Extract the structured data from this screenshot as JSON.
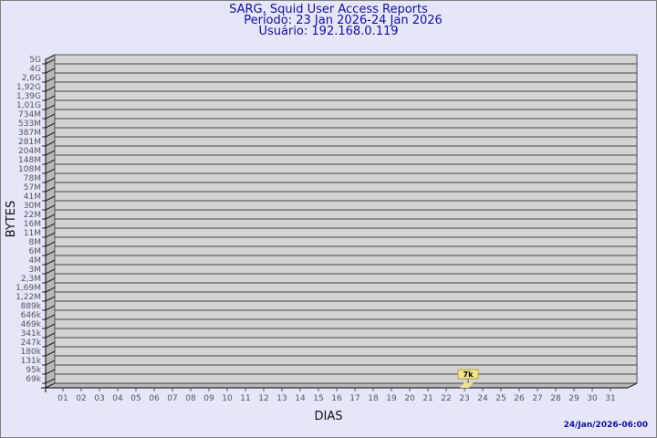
{
  "header": {
    "title": "SARG, Squid User Access Reports",
    "period": "Período: 23 Jan 2026-24 Jan 2026",
    "user": "Usuário: 192.168.0.119"
  },
  "footer": {
    "timestamp": "24/Jan/2026-06:00"
  },
  "colors": {
    "background": "#e6e6fa",
    "plot": "#d3d3d3",
    "bar": "#f5e28c",
    "title": "#1010a0"
  },
  "chart_data": {
    "type": "bar",
    "xlabel": "DIAS",
    "ylabel": "BYTES",
    "y_scale": "log",
    "y_ticks": [
      "5G",
      "4G",
      "2,6G",
      "1,92G",
      "1,39G",
      "1,01G",
      "734M",
      "533M",
      "387M",
      "281M",
      "204M",
      "148M",
      "108M",
      "78M",
      "57M",
      "41M",
      "30M",
      "22M",
      "16M",
      "11M",
      "8M",
      "6M",
      "4M",
      "3M",
      "2,3M",
      "1,69M",
      "1,22M",
      "889k",
      "646k",
      "469k",
      "341k",
      "247k",
      "180k",
      "131k",
      "95k",
      "69k"
    ],
    "categories": [
      "01",
      "02",
      "03",
      "04",
      "05",
      "06",
      "07",
      "08",
      "09",
      "10",
      "11",
      "12",
      "13",
      "14",
      "15",
      "16",
      "17",
      "18",
      "19",
      "20",
      "21",
      "22",
      "23",
      "24",
      "25",
      "26",
      "27",
      "28",
      "29",
      "30",
      "31"
    ],
    "bars": [
      {
        "category": "23",
        "value": 7000,
        "label": "7k"
      }
    ],
    "grid": true
  }
}
